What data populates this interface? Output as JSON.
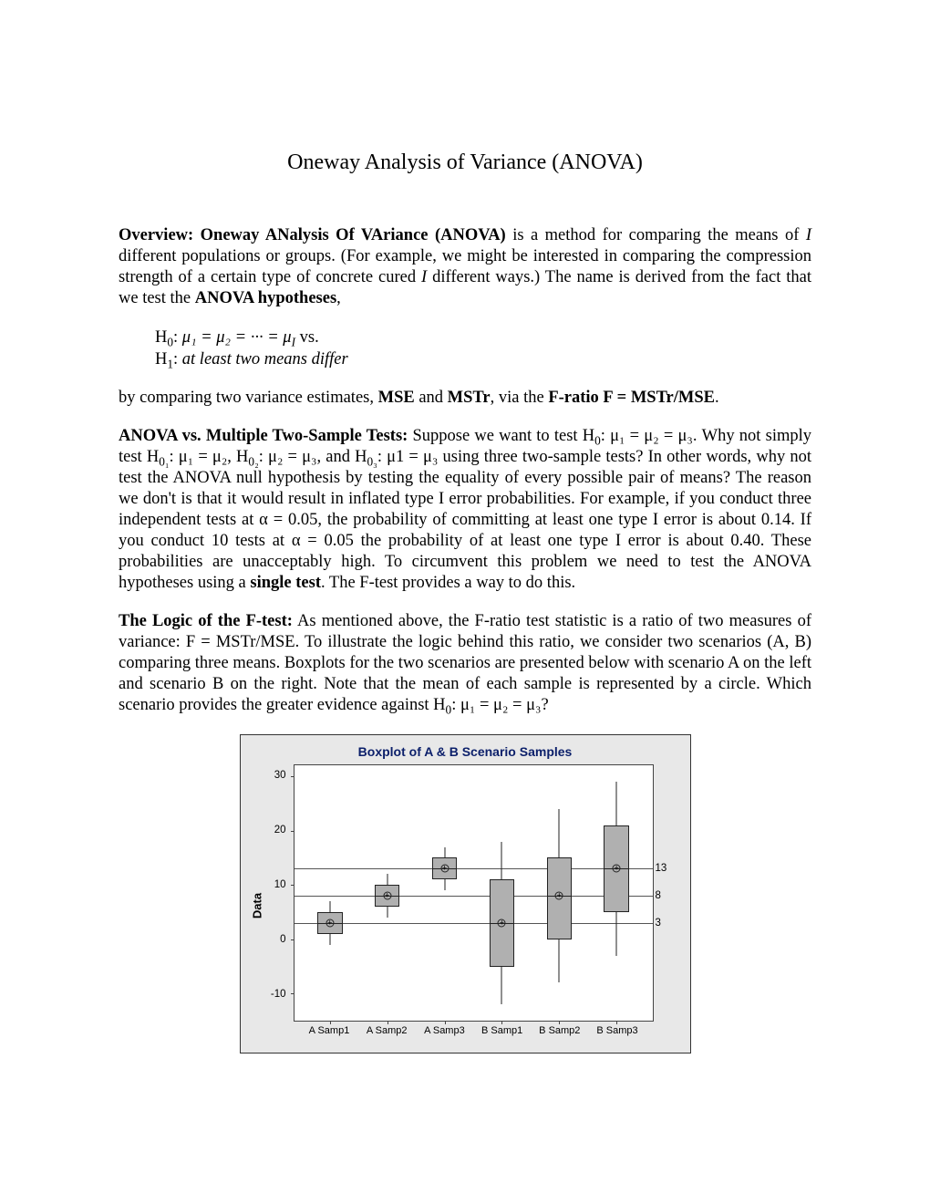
{
  "title": "Oneway Analysis of Variance (ANOVA)",
  "p1_a": "Overview: Oneway ANalysis Of VAriance (ANOVA)",
  "p1_b": " is a method for comparing the means of ",
  "p1_c": "I",
  "p1_d": " different populations or groups. (For example, we might be interested in comparing the compression strength of a certain type of concrete cured ",
  "p1_e": "I",
  "p1_f": " different ways.) The name is derived from the fact that we test the ",
  "p1_g": "ANOVA hypotheses",
  "p1_h": ",",
  "hyp_h0_a": "H",
  "hyp_h0_b": "0",
  "hyp_h0_c": ": ",
  "hyp_h0_eq": "μ₁ = μ₂ = ··· = μ",
  "hyp_h0_isub": "I",
  "hyp_h0_vs": " vs.",
  "hyp_h1_a": "H",
  "hyp_h1_b": "1",
  "hyp_h1_c": ": ",
  "hyp_h1_txt": "at least two means differ",
  "p2_a": "by comparing two variance estimates, ",
  "p2_b": "MSE",
  "p2_c": " and ",
  "p2_d": "MSTr",
  "p2_e": ", via the ",
  "p2_f": "F-ratio F = MSTr/MSE",
  "p2_g": ".",
  "p3_a": "ANOVA vs. Multiple Two-Sample Tests:",
  "p3_b": " Suppose we want to test H",
  "p3_c": "0",
  "p3_d": ": μ₁ = μ₂ = μ₃. Why not simply test H",
  "p3_e": "0₁",
  "p3_f": ": μ₁ = μ₂, H",
  "p3_g": "0₂",
  "p3_h": ": μ₂ = μ₃, and H",
  "p3_i": "0₃",
  "p3_j": ": μ1 = μ₃ using three two-sample tests? In other words, why not test the ANOVA null hypothesis by testing the equality of every possible pair of means? The reason we don't is that it would result in inflated type I error probabilities. For example, if you conduct three independent tests at α = 0.05, the probability of committing at least one type I error is about 0.14. If you conduct 10 tests at α = 0.05 the probability of at least one type I error is about 0.40. These probabilities are unacceptably high. To circumvent this problem we need to test the ANOVA hypotheses using a ",
  "p3_k": "single test",
  "p3_l": ". The F-test provides a way to do this.",
  "p4_a": "The Logic of the F-test:",
  "p4_b": " As mentioned above, the F-ratio test statistic is a ratio of two measures of variance: F = MSTr/MSE. To illustrate the logic behind this ratio, we consider two scenarios (A, B) comparing three means. Boxplots for the two scenarios are presented below with scenario A on the left and scenario B on the right. Note that the mean of each sample is represented by a circle. Which scenario provides the greater evidence against H",
  "p4_c": "0",
  "p4_d": ": μ₁ = μ₂ = μ₃?",
  "chart": {
    "title": "Boxplot of A & B Scenario Samples",
    "ylabel": "Data",
    "background_outer": "#e8e8e8",
    "background_plot": "#ffffff",
    "border_color": "#333333",
    "title_color": "#0b1f6a",
    "box_fill": "#b0b0b0",
    "line_color": "#222222",
    "ylim": [
      -15,
      32
    ],
    "yticks": [
      -10,
      0,
      10,
      20,
      30
    ],
    "ytick_labels": [
      "-10",
      "0",
      "10",
      "20",
      "30"
    ],
    "ref_lines": [
      3,
      8,
      13
    ],
    "ref_labels": [
      "3",
      "8",
      "13"
    ],
    "categories": [
      "A Samp1",
      "A Samp2",
      "A Samp3",
      "B Samp1",
      "B Samp2",
      "B Samp3"
    ],
    "x_positions_pct": [
      10,
      26,
      42,
      58,
      74,
      90
    ],
    "box_width_pct": 7,
    "boxplots": [
      {
        "whisker_lo": -1,
        "q1": 1,
        "median": 3,
        "q3": 5,
        "whisker_hi": 7,
        "mean": 3
      },
      {
        "whisker_lo": 4,
        "q1": 6,
        "median": 8,
        "q3": 10,
        "whisker_hi": 12,
        "mean": 8
      },
      {
        "whisker_lo": 9,
        "q1": 11,
        "median": 13,
        "q3": 15,
        "whisker_hi": 17,
        "mean": 13
      },
      {
        "whisker_lo": -12,
        "q1": -5,
        "median": 3,
        "q3": 11,
        "whisker_hi": 18,
        "mean": 3
      },
      {
        "whisker_lo": -8,
        "q1": 0,
        "median": 8,
        "q3": 15,
        "whisker_hi": 24,
        "mean": 8
      },
      {
        "whisker_lo": -3,
        "q1": 5,
        "median": 13,
        "q3": 21,
        "whisker_hi": 29,
        "mean": 13
      }
    ]
  }
}
